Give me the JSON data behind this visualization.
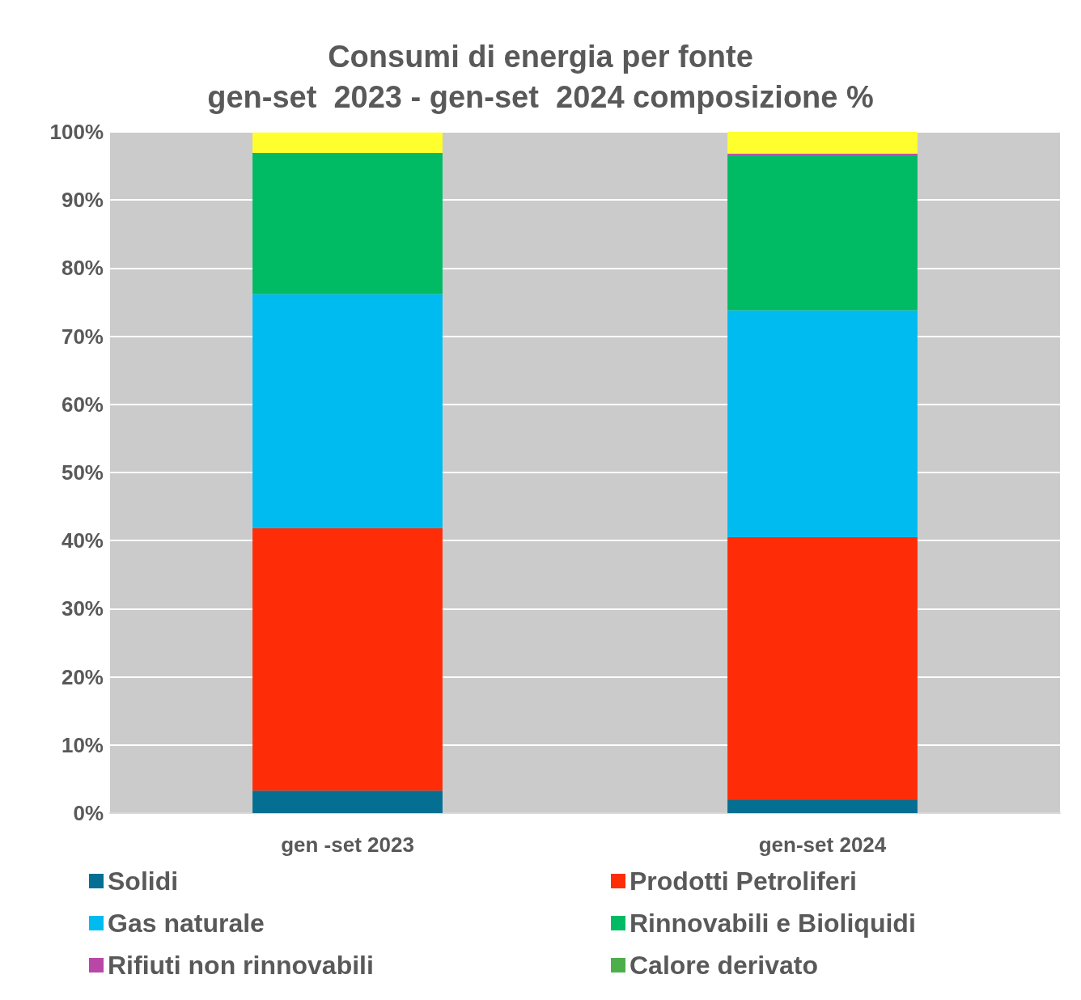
{
  "chart_data": {
    "type": "bar",
    "title": "Consumi di energia per fonte\ngen-set  2023 - gen-set  2024 composizione %",
    "categories": [
      "gen -set 2023",
      "gen-set 2024"
    ],
    "stacked": true,
    "series": [
      {
        "name": "Solidi",
        "color": "#046f92",
        "values": [
          3.3,
          1.9
        ]
      },
      {
        "name": "Prodotti Petroliferi",
        "color": "#ff2d07",
        "values": [
          38.5,
          38.6
        ]
      },
      {
        "name": "Gas naturale",
        "color": "#00bbf0",
        "values": [
          34.4,
          33.3
        ]
      },
      {
        "name": "Rinnovabili e Bioliquidi",
        "color": "#00bb64",
        "values": [
          20.7,
          22.8
        ]
      },
      {
        "name": "Rifiuti non rinnovabili",
        "color": "#b847a8",
        "values": [
          null,
          0.2
        ]
      },
      {
        "name": "Calore derivato",
        "color": "#4daf4a",
        "values": [
          0,
          0
        ]
      },
      {
        "color": "#ffff2e",
        "values": [
          3.0,
          3.2
        ]
      }
    ],
    "ylim": [
      0,
      100
    ],
    "yticks": [
      {
        "value": 0,
        "label": "0%"
      },
      {
        "value": 10,
        "label": "10%"
      },
      {
        "value": 20,
        "label": "20%"
      },
      {
        "value": 30,
        "label": "30%"
      },
      {
        "value": 40,
        "label": "40%"
      },
      {
        "value": 50,
        "label": "50%"
      },
      {
        "value": 60,
        "label": "60%"
      },
      {
        "value": 70,
        "label": "70%"
      },
      {
        "value": 80,
        "label": "80%"
      },
      {
        "value": 90,
        "label": "90%"
      },
      {
        "value": 100,
        "label": "100%"
      }
    ],
    "grid": "y",
    "legend": "bottom"
  }
}
